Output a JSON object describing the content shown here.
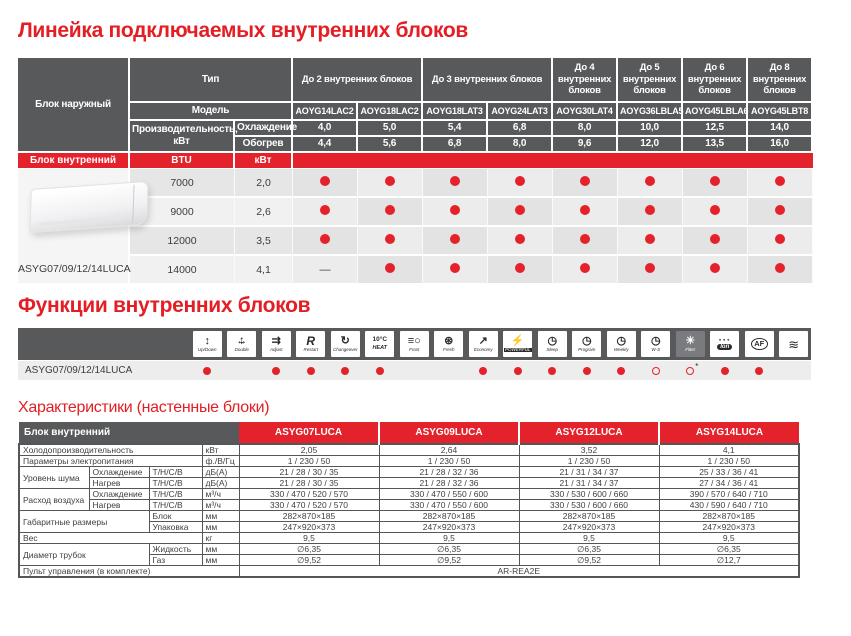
{
  "colors": {
    "red": "#e4222b",
    "header_gray": "#58595b",
    "title_red": "#e31e24",
    "row_shade_dark": "#e3e3e3",
    "row_shade_light": "#f1f1f1"
  },
  "titles": {
    "lineup": "Линейка подключаемых внутренних блоков",
    "functions": "Функции внутренних блоков",
    "specs": "Характеристики (настенные блоки)"
  },
  "lineup_table": {
    "outdoor_unit_label": "Блок наружный",
    "type_label": "Тип",
    "model_label": "Модель",
    "capacity_label": "Производительность, кВт",
    "cooling_label": "Охлаждение",
    "heating_label": "Обогрев",
    "indoor_unit_label": "Блок внутренний",
    "btu_label": "BTU",
    "kw_label": "кВт",
    "groups": [
      {
        "label": "До 2 внутренних блоков",
        "span": 2
      },
      {
        "label": "До 3 внутренних блоков",
        "span": 2
      },
      {
        "label": "До 4 внутренних блоков",
        "span": 1
      },
      {
        "label": "До 5 внутренних блоков",
        "span": 1
      },
      {
        "label": "До 6 внутренних блоков",
        "span": 1
      },
      {
        "label": "До 8 внутренних блоков",
        "span": 1
      }
    ],
    "models": [
      "AOYG14LAC2",
      "AOYG18LAC2",
      "AOYG18LAT3",
      "AOYG24LAT3",
      "AOYG30LAT4",
      "AOYG36LBLA5",
      "AOYG45LBLA6",
      "AOYG45LBT8"
    ],
    "cooling_kw": [
      "4,0",
      "5,0",
      "5,4",
      "6,8",
      "8,0",
      "10,0",
      "12,5",
      "14,0"
    ],
    "heating_kw": [
      "4,4",
      "5,6",
      "6,8",
      "8,0",
      "9,6",
      "12,0",
      "13,5",
      "16,0"
    ],
    "indoor_model_caption": "ASYG07/09/12/14LUCA",
    "rows": [
      {
        "btu": "7000",
        "kw": "2,0",
        "compat": [
          "dot",
          "dot",
          "dot",
          "dot",
          "dot",
          "dot",
          "dot",
          "dot"
        ]
      },
      {
        "btu": "9000",
        "kw": "2,6",
        "compat": [
          "dot",
          "dot",
          "dot",
          "dot",
          "dot",
          "dot",
          "dot",
          "dot"
        ]
      },
      {
        "btu": "12000",
        "kw": "3,5",
        "compat": [
          "dot",
          "dot",
          "dot",
          "dot",
          "dot",
          "dot",
          "dot",
          "dot"
        ]
      },
      {
        "btu": "14000",
        "kw": "4,1",
        "compat": [
          "dash",
          "dot",
          "dot",
          "dot",
          "dot",
          "dot",
          "dot",
          "dot"
        ]
      }
    ]
  },
  "functions_table": {
    "row_label": "ASYG07/09/12/14LUCA",
    "functions": [
      {
        "icon": "up-down-swing-icon",
        "label": "Up/Down",
        "glyph": "↕",
        "state": "filled"
      },
      {
        "icon": "double-swing-icon",
        "label": "Double",
        "glyph": "↔",
        "glyph2": "↕",
        "state": "none"
      },
      {
        "icon": "airflow-adjust-icon",
        "label": "Adjust",
        "glyph": "⇉",
        "state": "filled"
      },
      {
        "icon": "restart-icon",
        "label": "Restart",
        "glyph": "R",
        "state": "filled"
      },
      {
        "icon": "changeover-icon",
        "label": "Changeover",
        "glyph": "↻",
        "state": "filled"
      },
      {
        "icon": "heat-10c-icon",
        "label": "HEAT",
        "glyph": "10°C",
        "state": "filled"
      },
      {
        "icon": "frost-icon",
        "label": "Frost",
        "glyph": "≡○",
        "state": "none"
      },
      {
        "icon": "fresh-fan-icon",
        "label": "Fresh",
        "glyph": "⊛",
        "state": "none"
      },
      {
        "icon": "economy-icon",
        "label": "Economy",
        "glyph": "↗",
        "state": "filled"
      },
      {
        "icon": "powerful-icon",
        "label": "POWERFUL",
        "glyph": "⚡",
        "state": "filled"
      },
      {
        "icon": "sleep-timer-icon",
        "label": "Sleep",
        "glyph": "◷",
        "state": "filled"
      },
      {
        "icon": "program-timer-icon",
        "label": "Program",
        "glyph": "◷",
        "state": "filled"
      },
      {
        "icon": "weekly-timer-icon",
        "label": "Weekly",
        "glyph": "◷",
        "state": "filled"
      },
      {
        "icon": "ws-timer-icon",
        "label": "W-S",
        "glyph": "◷",
        "state": "hollow"
      },
      {
        "icon": "filter-sign-icon",
        "label": "Filter",
        "glyph": "☀",
        "state": "hollow-asterisk"
      },
      {
        "icon": "ion-icon",
        "label": "Ion",
        "glyph": "∘∘∘",
        "state": "filled"
      },
      {
        "icon": "af-filter-icon",
        "label": "",
        "glyph": "AF",
        "state": "filled"
      },
      {
        "icon": "low-noise-icon",
        "label": "",
        "glyph": "≋",
        "state": "none"
      }
    ]
  },
  "specs_table": {
    "header_label": "Блок внутренний",
    "models": [
      "ASYG07LUCA",
      "ASYG09LUCA",
      "ASYG12LUCA",
      "ASYG14LUCA"
    ],
    "rows": [
      {
        "label": "Холодопроизводительность",
        "unit": "кВт",
        "values": [
          "2,05",
          "2,64",
          "3,52",
          "4,1"
        ]
      },
      {
        "label": "Параметры электропитания",
        "unit": "ф./В/Гц",
        "values": [
          "1 / 230 / 50",
          "1 / 230 / 50",
          "1 / 230 / 50",
          "1 / 230 / 50"
        ]
      },
      {
        "label": "Уровень шума",
        "sub": "Охлаждение",
        "mode": "Т/Н/С/В",
        "unit": "дБ(А)",
        "values": [
          "21 / 28 / 30 / 35",
          "21 / 28 / 32 / 36",
          "21 / 31 / 34 / 37",
          "25 / 33 / 36 / 41"
        ]
      },
      {
        "sub": "Нагрев",
        "mode": "Т/Н/С/В",
        "unit": "дБ(А)",
        "values": [
          "21 / 28 / 30 / 35",
          "21 / 28 / 32 / 36",
          "21 / 31 / 34 / 37",
          "27 / 34 / 36 / 41"
        ]
      },
      {
        "label": "Расход воздуха",
        "sub": "Охлаждение",
        "mode": "Т/Н/С/В",
        "unit": "м³/ч",
        "values": [
          "330 / 470 / 520 / 570",
          "330 / 470 / 550 / 600",
          "330 / 530 / 600 / 660",
          "390 / 570 / 640 / 710"
        ]
      },
      {
        "sub": "Нагрев",
        "mode": "Т/Н/С/В",
        "unit": "м³/ч",
        "values": [
          "330 / 470 / 520 / 570",
          "330 / 470 / 550 / 600",
          "330 / 530 / 600 / 660",
          "430 / 590 / 640 / 710"
        ]
      },
      {
        "label": "Габаритные размеры",
        "sub": "Блок",
        "unit": "мм",
        "values": [
          "282×870×185",
          "282×870×185",
          "282×870×185",
          "282×870×185"
        ]
      },
      {
        "sub": "Упаковка",
        "unit": "мм",
        "values": [
          "247×920×373",
          "247×920×373",
          "247×920×373",
          "247×920×373"
        ]
      },
      {
        "label": "Вес",
        "unit": "кг",
        "values": [
          "9,5",
          "9,5",
          "9,5",
          "9,5"
        ]
      },
      {
        "label": "Диаметр трубок",
        "sub": "Жидкость",
        "unit": "мм",
        "values": [
          "∅6,35",
          "∅6,35",
          "∅6,35",
          "∅6,35"
        ]
      },
      {
        "sub": "Газ",
        "unit": "мм",
        "values": [
          "∅9,52",
          "∅9,52",
          "∅9,52",
          "∅12,7"
        ]
      },
      {
        "label": "Пульт управления (в комплекте)",
        "value": "AR-REA2E"
      }
    ]
  }
}
